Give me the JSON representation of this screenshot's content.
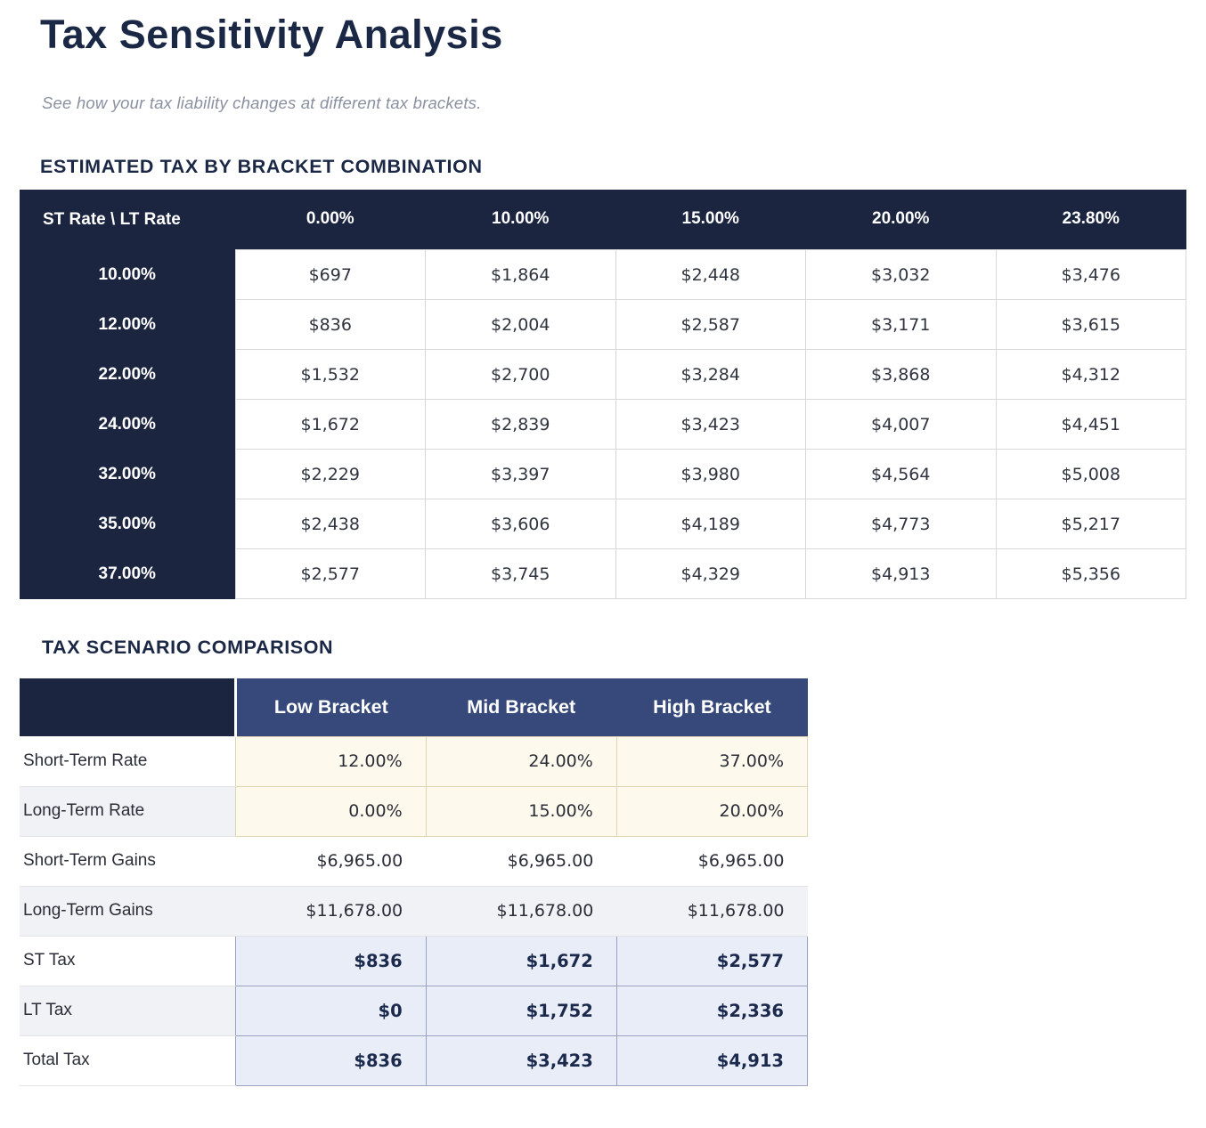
{
  "page": {
    "title": "Tax Sensitivity Analysis",
    "subtitle": "See how your tax liability changes at different tax brackets."
  },
  "colors": {
    "dark_navy": "#1b2540",
    "header_blue": "#36497a",
    "heading_text": "#1b2845",
    "input_cell_bg": "#fdf9ed",
    "input_cell_border": "#ddd5b3",
    "result_cell_bg": "#e9edf7",
    "result_cell_border": "#98a3c1",
    "stripe": "#f1f2f5"
  },
  "bracket_table": {
    "section_title": "ESTIMATED TAX BY BRACKET COMBINATION",
    "corner_label": "ST Rate \\ LT Rate",
    "col_headers": [
      "0.00%",
      "10.00%",
      "15.00%",
      "20.00%",
      "23.80%"
    ],
    "rows": [
      {
        "label": "10.00%",
        "values": [
          "$697",
          "$1,864",
          "$2,448",
          "$3,032",
          "$3,476"
        ]
      },
      {
        "label": "12.00%",
        "values": [
          "$836",
          "$2,004",
          "$2,587",
          "$3,171",
          "$3,615"
        ]
      },
      {
        "label": "22.00%",
        "values": [
          "$1,532",
          "$2,700",
          "$3,284",
          "$3,868",
          "$4,312"
        ]
      },
      {
        "label": "24.00%",
        "values": [
          "$1,672",
          "$2,839",
          "$3,423",
          "$4,007",
          "$4,451"
        ]
      },
      {
        "label": "32.00%",
        "values": [
          "$2,229",
          "$3,397",
          "$3,980",
          "$4,564",
          "$5,008"
        ]
      },
      {
        "label": "35.00%",
        "values": [
          "$2,438",
          "$3,606",
          "$4,189",
          "$4,773",
          "$5,217"
        ]
      },
      {
        "label": "37.00%",
        "values": [
          "$2,577",
          "$3,745",
          "$4,329",
          "$4,913",
          "$5,356"
        ]
      }
    ]
  },
  "scenario_table": {
    "section_title": "TAX SCENARIO COMPARISON",
    "col_headers": [
      "Low Bracket",
      "Mid Bracket",
      "High Bracket"
    ],
    "rows": [
      {
        "label": "Short-Term Rate",
        "style": "input",
        "values": [
          "12.00%",
          "24.00%",
          "37.00%"
        ]
      },
      {
        "label": "Long-Term Rate",
        "style": "input",
        "values": [
          "0.00%",
          "15.00%",
          "20.00%"
        ]
      },
      {
        "label": "Short-Term Gains",
        "style": "plain",
        "values": [
          "$6,965.00",
          "$6,965.00",
          "$6,965.00"
        ]
      },
      {
        "label": "Long-Term Gains",
        "style": "plain",
        "values": [
          "$11,678.00",
          "$11,678.00",
          "$11,678.00"
        ]
      },
      {
        "label": "ST Tax",
        "style": "result",
        "values": [
          "$836",
          "$1,672",
          "$2,577"
        ]
      },
      {
        "label": "LT Tax",
        "style": "result",
        "values": [
          "$0",
          "$1,752",
          "$2,336"
        ]
      },
      {
        "label": "Total Tax",
        "style": "result",
        "values": [
          "$836",
          "$3,423",
          "$4,913"
        ]
      }
    ]
  }
}
